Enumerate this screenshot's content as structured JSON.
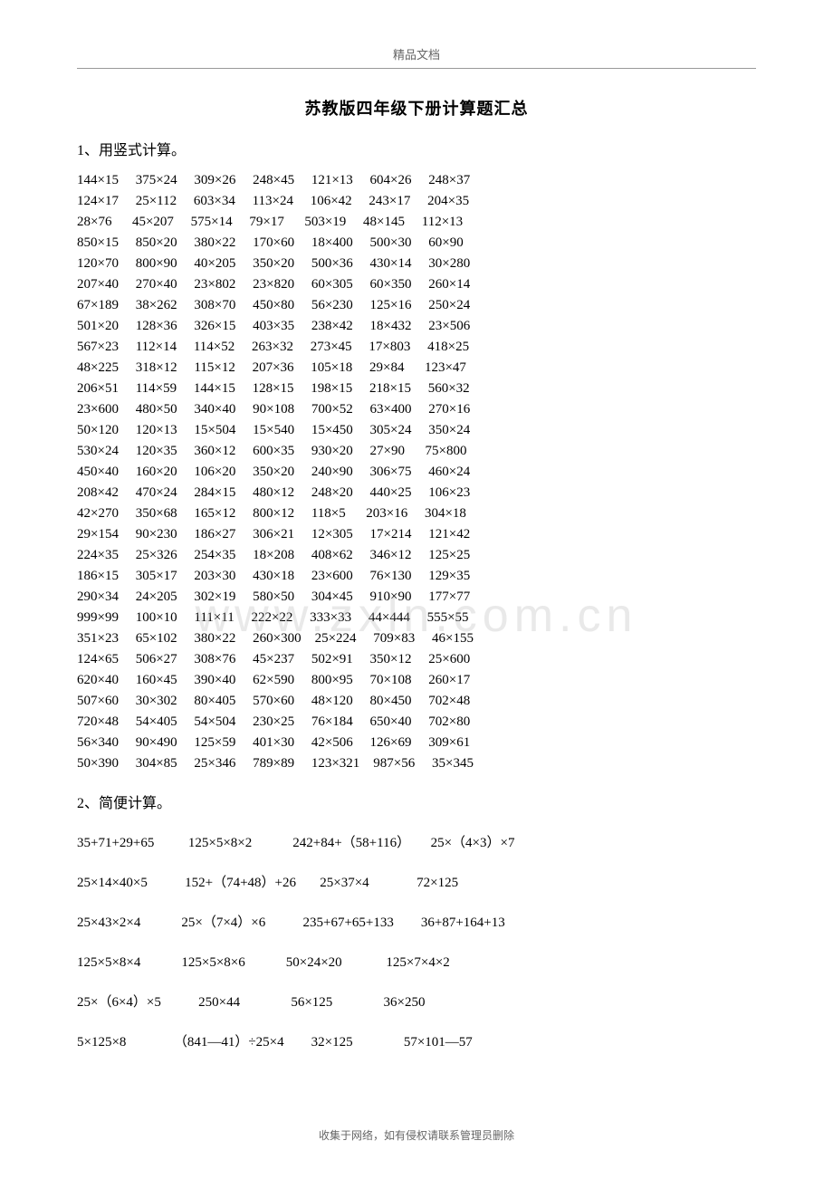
{
  "header_label": "精品文档",
  "title": "苏教版四年级下册计算题汇总",
  "section1_heading": "1、用竖式计算。",
  "section2_heading": "2、简便计算。",
  "footer_text": "收集于网络，如有侵权请联系管理员删除",
  "watermark": "www.zxln.com.cn",
  "vertical_calc_rows": [
    [
      "144×15",
      "375×24",
      "309×26",
      "248×45",
      "121×13",
      "604×26",
      "248×37"
    ],
    [
      "124×17",
      "25×112",
      "603×34",
      "113×24",
      "106×42",
      "243×17",
      "204×35"
    ],
    [
      "28×76",
      "45×207",
      "575×14",
      "79×17",
      "503×19",
      "48×145",
      "112×13"
    ],
    [
      "850×15",
      "850×20",
      "380×22",
      "170×60",
      "18×400",
      "500×30",
      "60×90"
    ],
    [
      "120×70",
      "800×90",
      "40×205",
      "350×20",
      "500×36",
      "430×14",
      "30×280"
    ],
    [
      "207×40",
      "270×40",
      "23×802",
      "23×820",
      "60×305",
      "60×350",
      "260×14"
    ],
    [
      "67×189",
      "38×262",
      "308×70",
      "450×80",
      "56×230",
      "125×16",
      "250×24"
    ],
    [
      "501×20",
      "128×36",
      "326×15",
      "403×35",
      "238×42",
      "18×432",
      "23×506"
    ],
    [
      "567×23",
      "112×14",
      "114×52",
      "263×32",
      "273×45",
      "17×803",
      "418×25"
    ],
    [
      "48×225",
      "318×12",
      "115×12",
      "207×36",
      "105×18",
      "29×84",
      "123×47"
    ],
    [
      "206×51",
      "114×59",
      "144×15",
      "128×15",
      "198×15",
      "218×15",
      "560×32"
    ],
    [
      "23×600",
      "480×50",
      "340×40",
      "90×108",
      "700×52",
      "63×400",
      "270×16"
    ],
    [
      "50×120",
      "120×13",
      "15×504",
      "15×540",
      "15×450",
      "305×24",
      "350×24"
    ],
    [
      "530×24",
      "120×35",
      "360×12",
      "600×35",
      "930×20",
      "27×90",
      "75×800"
    ],
    [
      "450×40",
      "160×20",
      "106×20",
      "350×20",
      "240×90",
      "306×75",
      "460×24"
    ],
    [
      "208×42",
      "470×24",
      "284×15",
      "480×12",
      "248×20",
      "440×25",
      "106×23"
    ],
    [
      "42×270",
      "350×68",
      "165×12",
      "800×12",
      "118×5",
      "203×16",
      "304×18"
    ],
    [
      "29×154",
      "90×230",
      "186×27",
      "306×21",
      "12×305",
      "17×214",
      "121×42"
    ],
    [
      "224×35",
      "25×326",
      "254×35",
      "18×208",
      "408×62",
      "346×12",
      "125×25"
    ],
    [
      "186×15",
      "305×17",
      "203×30",
      "430×18",
      "23×600",
      "76×130",
      "129×35"
    ],
    [
      "290×34",
      "24×205",
      "302×19",
      "580×50",
      "304×45",
      "910×90",
      "177×77"
    ],
    [
      "999×99",
      "100×10",
      "111×11",
      "222×22",
      "333×33",
      "44×444",
      "555×55"
    ],
    [
      "351×23",
      "65×102",
      "380×22",
      "260×300",
      "25×224",
      "709×83",
      "46×155"
    ],
    [
      "124×65",
      "506×27",
      "308×76",
      "45×237",
      "502×91",
      "350×12",
      "25×600"
    ],
    [
      "620×40",
      "160×45",
      "390×40",
      "62×590",
      "800×95",
      "70×108",
      "260×17"
    ],
    [
      "507×60",
      "30×302",
      "80×405",
      "570×60",
      "48×120",
      "80×450",
      "702×48"
    ],
    [
      "720×48",
      "54×405",
      "54×504",
      "230×25",
      "76×184",
      "650×40",
      "702×80"
    ],
    [
      "56×340",
      "90×490",
      "125×59",
      "401×30",
      "42×506",
      "126×69",
      "309×61"
    ],
    [
      "50×390",
      "304×85",
      "25×346",
      "789×89",
      "123×321",
      "987×56",
      "35×345"
    ]
  ],
  "simple_calc_rows": [
    [
      "35+71+29+65",
      "125×5×8×2",
      "242+84+（58+116）",
      "25×（4×3）×7"
    ],
    [
      "25×14×40×5",
      "152+（74+48）+26",
      "25×37×4",
      "72×125"
    ],
    [
      "25×43×2×4",
      "25×（7×4）×6",
      "235+67+65+133",
      "36+87+164+13"
    ],
    [
      "125×5×8×4",
      "125×5×8×6",
      "50×24×20",
      "125×7×4×2"
    ],
    [
      "25×（6×4）×5",
      "250×44",
      "56×125",
      "36×250"
    ],
    [
      "5×125×8",
      "（841—41）÷25×4",
      "32×125",
      "57×101—57"
    ]
  ],
  "colors": {
    "text": "#000000",
    "background": "#ffffff",
    "header_text": "#666666",
    "divider": "#999999",
    "watermark": "rgba(175,175,175,0.28)"
  }
}
